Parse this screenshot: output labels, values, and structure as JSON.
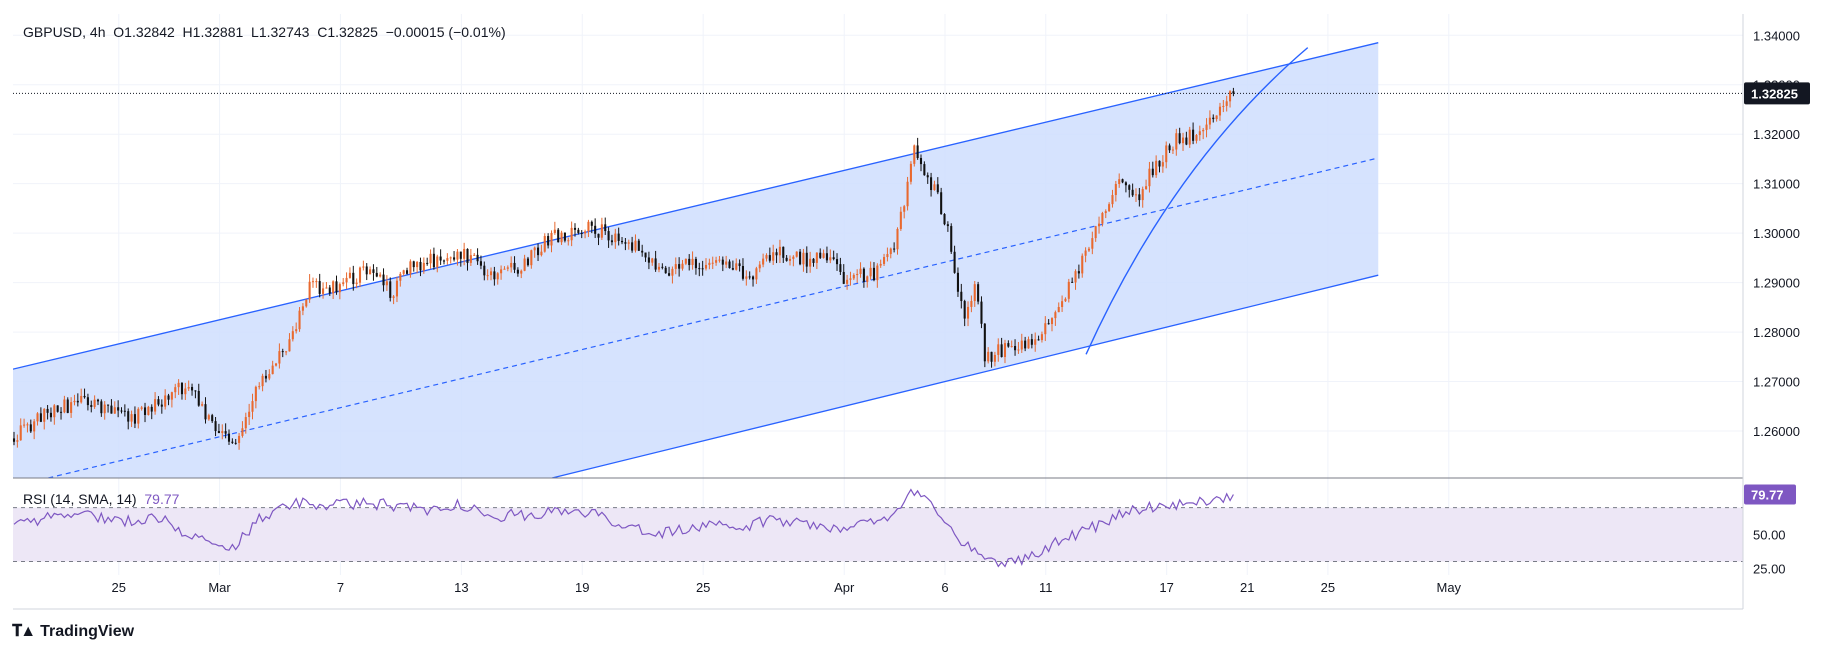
{
  "header": {
    "symbol": "GBPUSD",
    "interval": "4h",
    "open": "O1.32842",
    "high": "H1.32881",
    "low": "L1.32743",
    "close": "C1.32825",
    "change": "−0.00015 (−0.01%)"
  },
  "rsi_header": {
    "label": "RSI (14, SMA, 14)",
    "value": "79.77"
  },
  "brand": {
    "name": "TradingView",
    "icon": "tradingview-logo-icon"
  },
  "colors": {
    "up": "#e8692f",
    "down": "#111111",
    "channel_line": "#2962ff",
    "channel_fill": "#cfdefe",
    "rsi_line": "#7e57c2",
    "rsi_band": "#ede7f6"
  },
  "chart_data": [
    {
      "type": "candlestick",
      "y_tick_labels": [
        "1.34000",
        "1.33000",
        "1.32000",
        "1.31000",
        "1.30000",
        "1.29000",
        "1.28000",
        "1.27000",
        "1.26000"
      ],
      "y_ticks": [
        1.34,
        1.33,
        1.32,
        1.31,
        1.3,
        1.29,
        1.28,
        1.27,
        1.26
      ],
      "ylim": [
        1.2505,
        1.3443
      ],
      "x_tick_labels": [
        "25",
        "Mar",
        "7",
        "13",
        "19",
        "25",
        "Apr",
        "6",
        "11",
        "17",
        "21",
        "25",
        "May"
      ],
      "x_tick_days": [
        -4,
        1,
        7,
        13,
        19,
        25,
        32,
        37,
        42,
        48,
        52,
        56,
        62
      ],
      "x_axis_zero": "2025-03-01",
      "xlim": [
        -9.25,
        76.6
      ],
      "last_price_label": "1.32825",
      "last_price": 1.32825,
      "anchors": [
        [
          -9.2,
          1.2585
        ],
        [
          -7.5,
          1.264
        ],
        [
          -5.5,
          1.2665
        ],
        [
          -3.5,
          1.262
        ],
        [
          -2,
          1.266
        ],
        [
          -0.5,
          1.2695
        ],
        [
          0.5,
          1.262
        ],
        [
          1,
          1.2585
        ],
        [
          2,
          1.2585
        ],
        [
          3,
          1.27
        ],
        [
          4,
          1.275
        ],
        [
          4.8,
          1.281
        ],
        [
          5.5,
          1.289
        ],
        [
          6.5,
          1.289
        ],
        [
          8.5,
          1.2925
        ],
        [
          9.5,
          1.288
        ],
        [
          10.5,
          1.2935
        ],
        [
          11.5,
          1.2945
        ],
        [
          13,
          1.296
        ],
        [
          14.5,
          1.292
        ],
        [
          16,
          1.293
        ],
        [
          17.5,
          1.2995
        ],
        [
          19.5,
          1.301
        ],
        [
          21,
          1.299
        ],
        [
          22,
          1.296
        ],
        [
          23,
          1.292
        ],
        [
          24.5,
          1.294
        ],
        [
          26,
          1.294
        ],
        [
          27.5,
          1.291
        ],
        [
          28.5,
          1.296
        ],
        [
          30,
          1.2945
        ],
        [
          31.5,
          1.295
        ],
        [
          32,
          1.291
        ],
        [
          33.5,
          1.292
        ],
        [
          34.5,
          1.298
        ],
        [
          35.5,
          1.317
        ],
        [
          36,
          1.311
        ],
        [
          36.5,
          1.309
        ],
        [
          37,
          1.303
        ],
        [
          37.5,
          1.292
        ],
        [
          38,
          1.283
        ],
        [
          38.5,
          1.29
        ],
        [
          39,
          1.274
        ],
        [
          40,
          1.277
        ],
        [
          41.5,
          1.278
        ],
        [
          42.5,
          1.284
        ],
        [
          43.5,
          1.292
        ],
        [
          44.5,
          1.3
        ],
        [
          45.5,
          1.31
        ],
        [
          46.5,
          1.307
        ],
        [
          47.5,
          1.314
        ],
        [
          48.5,
          1.319
        ],
        [
          49.5,
          1.32
        ],
        [
          50.5,
          1.325
        ],
        [
          51.3,
          1.3282
        ]
      ],
      "upper_channel": [
        [
          -9.25,
          1.2725
        ],
        [
          58.5,
          1.3385
        ]
      ],
      "lower_channel": [
        [
          17.5,
          1.2505
        ],
        [
          58.5,
          1.2915
        ]
      ],
      "mid_channel": [
        [
          -7.5,
          1.2505
        ],
        [
          58.5,
          1.3152
        ]
      ],
      "arc": {
        "start": [
          44.0,
          1.2755
        ],
        "control": [
          48.3,
          1.3142
        ],
        "end": [
          55.0,
          1.3375
        ]
      }
    },
    {
      "type": "line",
      "name": "RSI (14, SMA, 14)",
      "ylim": [
        20,
        92
      ],
      "y_ticks": [
        50,
        25
      ],
      "y_tick_labels": [
        "50.00",
        "25.00"
      ],
      "band": [
        30,
        70
      ],
      "last_value_label": "79.77",
      "anchors": [
        [
          -9.2,
          57
        ],
        [
          -6,
          67
        ],
        [
          -4,
          60
        ],
        [
          -2,
          63
        ],
        [
          0,
          46
        ],
        [
          1.5,
          37
        ],
        [
          3,
          62
        ],
        [
          5,
          74
        ],
        [
          7,
          72
        ],
        [
          9,
          73
        ],
        [
          11,
          68
        ],
        [
          13,
          72
        ],
        [
          15,
          64
        ],
        [
          17,
          66
        ],
        [
          19,
          67
        ],
        [
          21,
          58
        ],
        [
          23,
          51
        ],
        [
          25,
          56
        ],
        [
          27,
          55
        ],
        [
          28.5,
          62
        ],
        [
          30,
          58
        ],
        [
          32,
          55
        ],
        [
          34,
          61
        ],
        [
          35.5,
          83
        ],
        [
          36.5,
          71
        ],
        [
          37.5,
          49
        ],
        [
          38.5,
          38
        ],
        [
          39.5,
          29
        ],
        [
          41,
          32
        ],
        [
          42.5,
          44
        ],
        [
          44,
          53
        ],
        [
          45.5,
          64
        ],
        [
          47,
          71
        ],
        [
          49,
          73
        ],
        [
          51.3,
          79.77
        ]
      ]
    }
  ]
}
